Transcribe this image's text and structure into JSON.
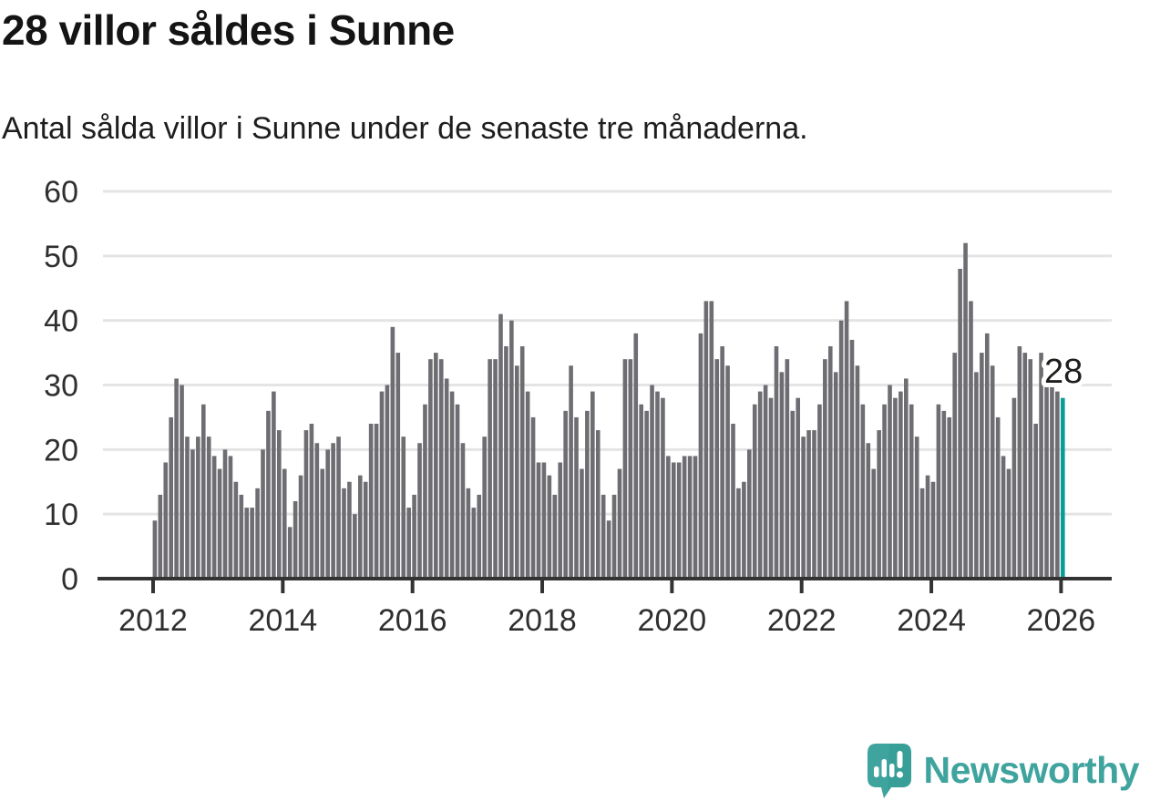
{
  "header": {
    "title": "28 villor såldes i Sunne",
    "subtitle": "Antal sålda villor i Sunne under de senaste tre månaderna."
  },
  "annotation": {
    "last_value_label": "28"
  },
  "branding": {
    "wordmark": "Newsworthy",
    "logo_icon": "speech-bubble-bar-chart-icon"
  },
  "colors": {
    "bar": "#6d6d72",
    "accent": "#089e98",
    "logo": "#3fa39e",
    "axis_text": "#2f2f2f",
    "grid": "#e4e4e4",
    "zero_line": "#333333",
    "annotation_text": "#1e1e1e",
    "annotation_halo": "#ffffff"
  },
  "chart_data": {
    "type": "bar",
    "title": "28 villor såldes i Sunne",
    "subtitle": "Antal sålda villor i Sunne under de senaste tre månaderna.",
    "xlabel": "",
    "ylabel": "",
    "grid": true,
    "legend": false,
    "ylim": [
      0,
      60
    ],
    "y_ticks": [
      0,
      10,
      20,
      30,
      40,
      50,
      60
    ],
    "x_tick_labels": [
      "2012",
      "2014",
      "2016",
      "2018",
      "2020",
      "2022",
      "2024",
      "2026"
    ],
    "start_month": "2012-01",
    "highlight_last_bar": true,
    "highlight_value": 28,
    "values_by_year": {
      "2012": [
        9,
        13,
        18,
        25,
        31,
        30,
        22,
        20,
        22,
        27,
        22,
        19
      ],
      "2013": [
        17,
        20,
        19,
        15,
        13,
        11,
        11,
        14,
        20,
        26,
        29,
        23
      ],
      "2014": [
        17,
        8,
        12,
        16,
        23,
        24,
        21,
        17,
        20,
        21,
        22,
        14
      ],
      "2015": [
        15,
        10,
        16,
        15,
        24,
        24,
        29,
        30,
        39,
        35,
        22,
        11
      ],
      "2016": [
        13,
        21,
        27,
        34,
        35,
        34,
        31,
        29,
        27,
        21,
        14,
        11
      ],
      "2017": [
        13,
        22,
        34,
        34,
        41,
        36,
        40,
        33,
        36,
        29,
        25,
        18
      ],
      "2018": [
        18,
        16,
        13,
        18,
        26,
        33,
        25,
        17,
        26,
        29,
        23,
        13
      ],
      "2019": [
        9,
        13,
        17,
        34,
        34,
        38,
        27,
        26,
        30,
        29,
        28,
        19
      ],
      "2020": [
        18,
        18,
        19,
        19,
        19,
        38,
        43,
        43,
        34,
        36,
        33,
        24
      ],
      "2021": [
        14,
        15,
        20,
        27,
        29,
        30,
        28,
        36,
        32,
        34,
        26,
        28
      ],
      "2022": [
        22,
        23,
        23,
        27,
        34,
        36,
        32,
        40,
        43,
        37,
        33,
        27
      ],
      "2023": [
        21,
        17,
        23,
        27,
        30,
        28,
        29,
        31,
        27,
        22,
        14,
        16
      ],
      "2024": [
        15,
        27,
        26,
        25,
        35,
        48,
        52,
        43,
        32,
        35,
        38,
        33
      ],
      "2025": [
        25,
        19,
        17,
        28,
        36,
        35,
        34,
        24,
        35,
        30,
        30,
        29
      ],
      "2026": [
        28
      ]
    }
  }
}
